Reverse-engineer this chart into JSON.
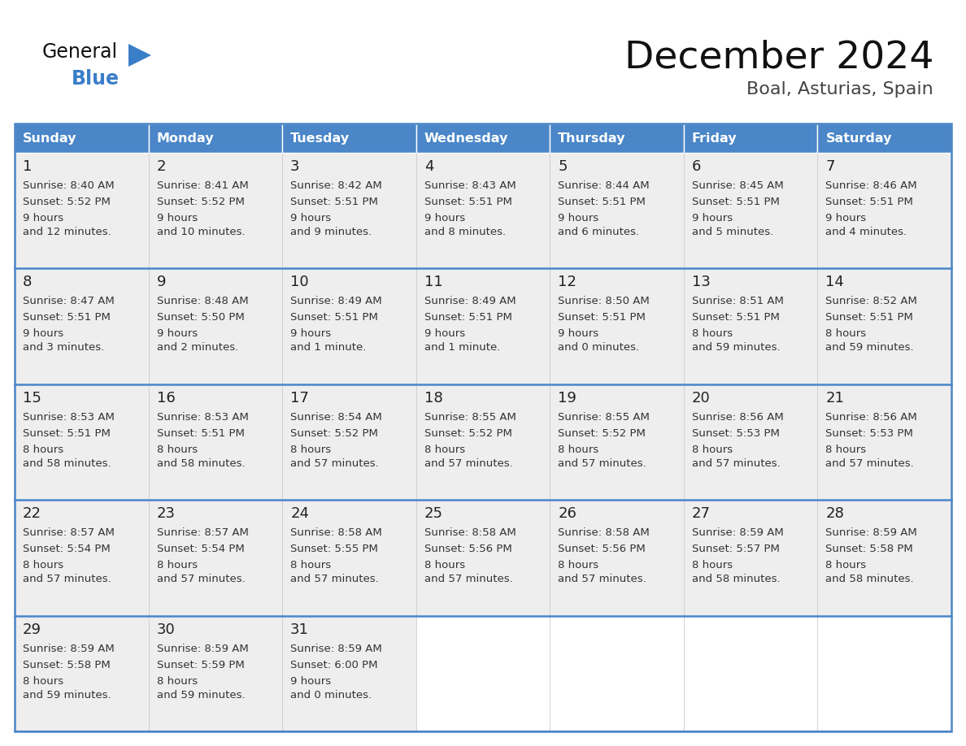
{
  "title": "December 2024",
  "subtitle": "Boal, Asturias, Spain",
  "days_of_week": [
    "Sunday",
    "Monday",
    "Tuesday",
    "Wednesday",
    "Thursday",
    "Friday",
    "Saturday"
  ],
  "header_bg": "#4a86c8",
  "header_text": "#ffffff",
  "row_bg": "#eeeeee",
  "empty_bg": "#ffffff",
  "cell_border_color": "#4a86c8",
  "day_num_color": "#222222",
  "day_text_color": "#333333",
  "title_color": "#111111",
  "subtitle_color": "#444444",
  "logo_general_color": "#111111",
  "logo_blue_color": "#3a7ec8",
  "weeks": [
    [
      {
        "day": 1,
        "sunrise": "8:40 AM",
        "sunset": "5:52 PM",
        "daylight": "9 hours\nand 12 minutes."
      },
      {
        "day": 2,
        "sunrise": "8:41 AM",
        "sunset": "5:52 PM",
        "daylight": "9 hours\nand 10 minutes."
      },
      {
        "day": 3,
        "sunrise": "8:42 AM",
        "sunset": "5:51 PM",
        "daylight": "9 hours\nand 9 minutes."
      },
      {
        "day": 4,
        "sunrise": "8:43 AM",
        "sunset": "5:51 PM",
        "daylight": "9 hours\nand 8 minutes."
      },
      {
        "day": 5,
        "sunrise": "8:44 AM",
        "sunset": "5:51 PM",
        "daylight": "9 hours\nand 6 minutes."
      },
      {
        "day": 6,
        "sunrise": "8:45 AM",
        "sunset": "5:51 PM",
        "daylight": "9 hours\nand 5 minutes."
      },
      {
        "day": 7,
        "sunrise": "8:46 AM",
        "sunset": "5:51 PM",
        "daylight": "9 hours\nand 4 minutes."
      }
    ],
    [
      {
        "day": 8,
        "sunrise": "8:47 AM",
        "sunset": "5:51 PM",
        "daylight": "9 hours\nand 3 minutes."
      },
      {
        "day": 9,
        "sunrise": "8:48 AM",
        "sunset": "5:50 PM",
        "daylight": "9 hours\nand 2 minutes."
      },
      {
        "day": 10,
        "sunrise": "8:49 AM",
        "sunset": "5:51 PM",
        "daylight": "9 hours\nand 1 minute."
      },
      {
        "day": 11,
        "sunrise": "8:49 AM",
        "sunset": "5:51 PM",
        "daylight": "9 hours\nand 1 minute."
      },
      {
        "day": 12,
        "sunrise": "8:50 AM",
        "sunset": "5:51 PM",
        "daylight": "9 hours\nand 0 minutes."
      },
      {
        "day": 13,
        "sunrise": "8:51 AM",
        "sunset": "5:51 PM",
        "daylight": "8 hours\nand 59 minutes."
      },
      {
        "day": 14,
        "sunrise": "8:52 AM",
        "sunset": "5:51 PM",
        "daylight": "8 hours\nand 59 minutes."
      }
    ],
    [
      {
        "day": 15,
        "sunrise": "8:53 AM",
        "sunset": "5:51 PM",
        "daylight": "8 hours\nand 58 minutes."
      },
      {
        "day": 16,
        "sunrise": "8:53 AM",
        "sunset": "5:51 PM",
        "daylight": "8 hours\nand 58 minutes."
      },
      {
        "day": 17,
        "sunrise": "8:54 AM",
        "sunset": "5:52 PM",
        "daylight": "8 hours\nand 57 minutes."
      },
      {
        "day": 18,
        "sunrise": "8:55 AM",
        "sunset": "5:52 PM",
        "daylight": "8 hours\nand 57 minutes."
      },
      {
        "day": 19,
        "sunrise": "8:55 AM",
        "sunset": "5:52 PM",
        "daylight": "8 hours\nand 57 minutes."
      },
      {
        "day": 20,
        "sunrise": "8:56 AM",
        "sunset": "5:53 PM",
        "daylight": "8 hours\nand 57 minutes."
      },
      {
        "day": 21,
        "sunrise": "8:56 AM",
        "sunset": "5:53 PM",
        "daylight": "8 hours\nand 57 minutes."
      }
    ],
    [
      {
        "day": 22,
        "sunrise": "8:57 AM",
        "sunset": "5:54 PM",
        "daylight": "8 hours\nand 57 minutes."
      },
      {
        "day": 23,
        "sunrise": "8:57 AM",
        "sunset": "5:54 PM",
        "daylight": "8 hours\nand 57 minutes."
      },
      {
        "day": 24,
        "sunrise": "8:58 AM",
        "sunset": "5:55 PM",
        "daylight": "8 hours\nand 57 minutes."
      },
      {
        "day": 25,
        "sunrise": "8:58 AM",
        "sunset": "5:56 PM",
        "daylight": "8 hours\nand 57 minutes."
      },
      {
        "day": 26,
        "sunrise": "8:58 AM",
        "sunset": "5:56 PM",
        "daylight": "8 hours\nand 57 minutes."
      },
      {
        "day": 27,
        "sunrise": "8:59 AM",
        "sunset": "5:57 PM",
        "daylight": "8 hours\nand 58 minutes."
      },
      {
        "day": 28,
        "sunrise": "8:59 AM",
        "sunset": "5:58 PM",
        "daylight": "8 hours\nand 58 minutes."
      }
    ],
    [
      {
        "day": 29,
        "sunrise": "8:59 AM",
        "sunset": "5:58 PM",
        "daylight": "8 hours\nand 59 minutes."
      },
      {
        "day": 30,
        "sunrise": "8:59 AM",
        "sunset": "5:59 PM",
        "daylight": "8 hours\nand 59 minutes."
      },
      {
        "day": 31,
        "sunrise": "8:59 AM",
        "sunset": "6:00 PM",
        "daylight": "9 hours\nand 0 minutes."
      },
      null,
      null,
      null,
      null
    ]
  ]
}
